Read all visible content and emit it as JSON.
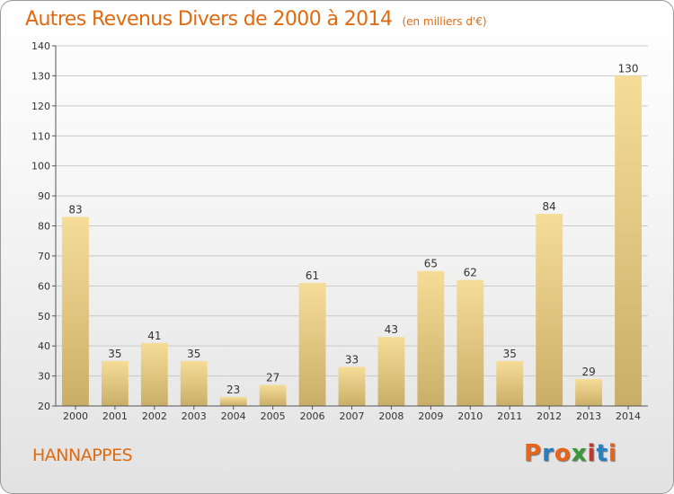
{
  "header": {
    "title": "Autres Revenus Divers de 2000 à 2014",
    "unit_note": "(en milliers d'€)"
  },
  "footer": {
    "location": "HANNAPPES",
    "logo_text": "Proxiti",
    "logo_colors": [
      "#e8641b",
      "#2a7fc0",
      "#e8641b",
      "#3a9a3a",
      "#c0392b",
      "#2a7fc0",
      "#e8641b"
    ]
  },
  "colors": {
    "accent": "#e06a10",
    "bar_light": "#f6dd97",
    "bar_dark": "#c9ae67"
  },
  "chart_data": {
    "type": "bar",
    "title": "Autres Revenus Divers de 2000 à 2014",
    "subtitle": "(en milliers d'€)",
    "xlabel": "",
    "ylabel": "",
    "ylim": [
      20,
      140
    ],
    "yticks": [
      20,
      30,
      40,
      50,
      60,
      70,
      80,
      90,
      100,
      110,
      120,
      130,
      140
    ],
    "grid": true,
    "categories": [
      "2000",
      "2001",
      "2002",
      "2003",
      "2004",
      "2005",
      "2006",
      "2007",
      "2008",
      "2009",
      "2010",
      "2011",
      "2012",
      "2013",
      "2014"
    ],
    "values": [
      83,
      35,
      41,
      35,
      23,
      27,
      61,
      33,
      43,
      65,
      62,
      35,
      84,
      29,
      130
    ]
  }
}
